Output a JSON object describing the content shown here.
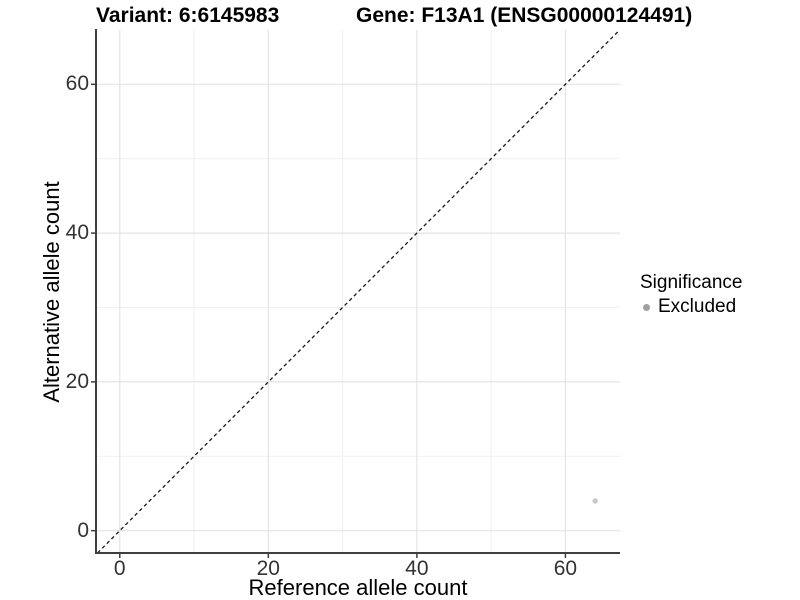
{
  "titles": {
    "variant": "Variant: 6:6145983",
    "gene": "Gene: F13A1 (ENSG00000124491)"
  },
  "chart_data": {
    "type": "scatter",
    "xlabel": "Reference allele count",
    "ylabel": "Alternative allele count",
    "xlim": [
      -3.2,
      67.35
    ],
    "ylim": [
      -3.0,
      67.3
    ],
    "x_ticks": [
      0,
      20,
      40,
      60
    ],
    "y_ticks": [
      0,
      20,
      40,
      60
    ],
    "x_minor_ticks": [
      10,
      30,
      50
    ],
    "y_minor_ticks": [
      10,
      30,
      50
    ],
    "grid": "major+minor",
    "reference_line": {
      "type": "identity y=x",
      "style": "dashed",
      "from": -3.0,
      "to": 67.3,
      "color": "#1a1a1a"
    },
    "series": [
      {
        "name": "Excluded",
        "color": "#c7c7c7",
        "points": [
          [
            64,
            4
          ]
        ]
      }
    ],
    "legend": {
      "title": "Significance",
      "position": "right",
      "entries": [
        {
          "label": "Excluded",
          "color": "#a0a0a0",
          "marker": "circle"
        }
      ]
    },
    "colors": {
      "background": "#ffffff",
      "grid_major": "#e4e4e4",
      "grid_minor": "#efefef",
      "axis_line": "#3f3f3f",
      "tick_text": "#333333",
      "title_text": "#000000"
    }
  }
}
